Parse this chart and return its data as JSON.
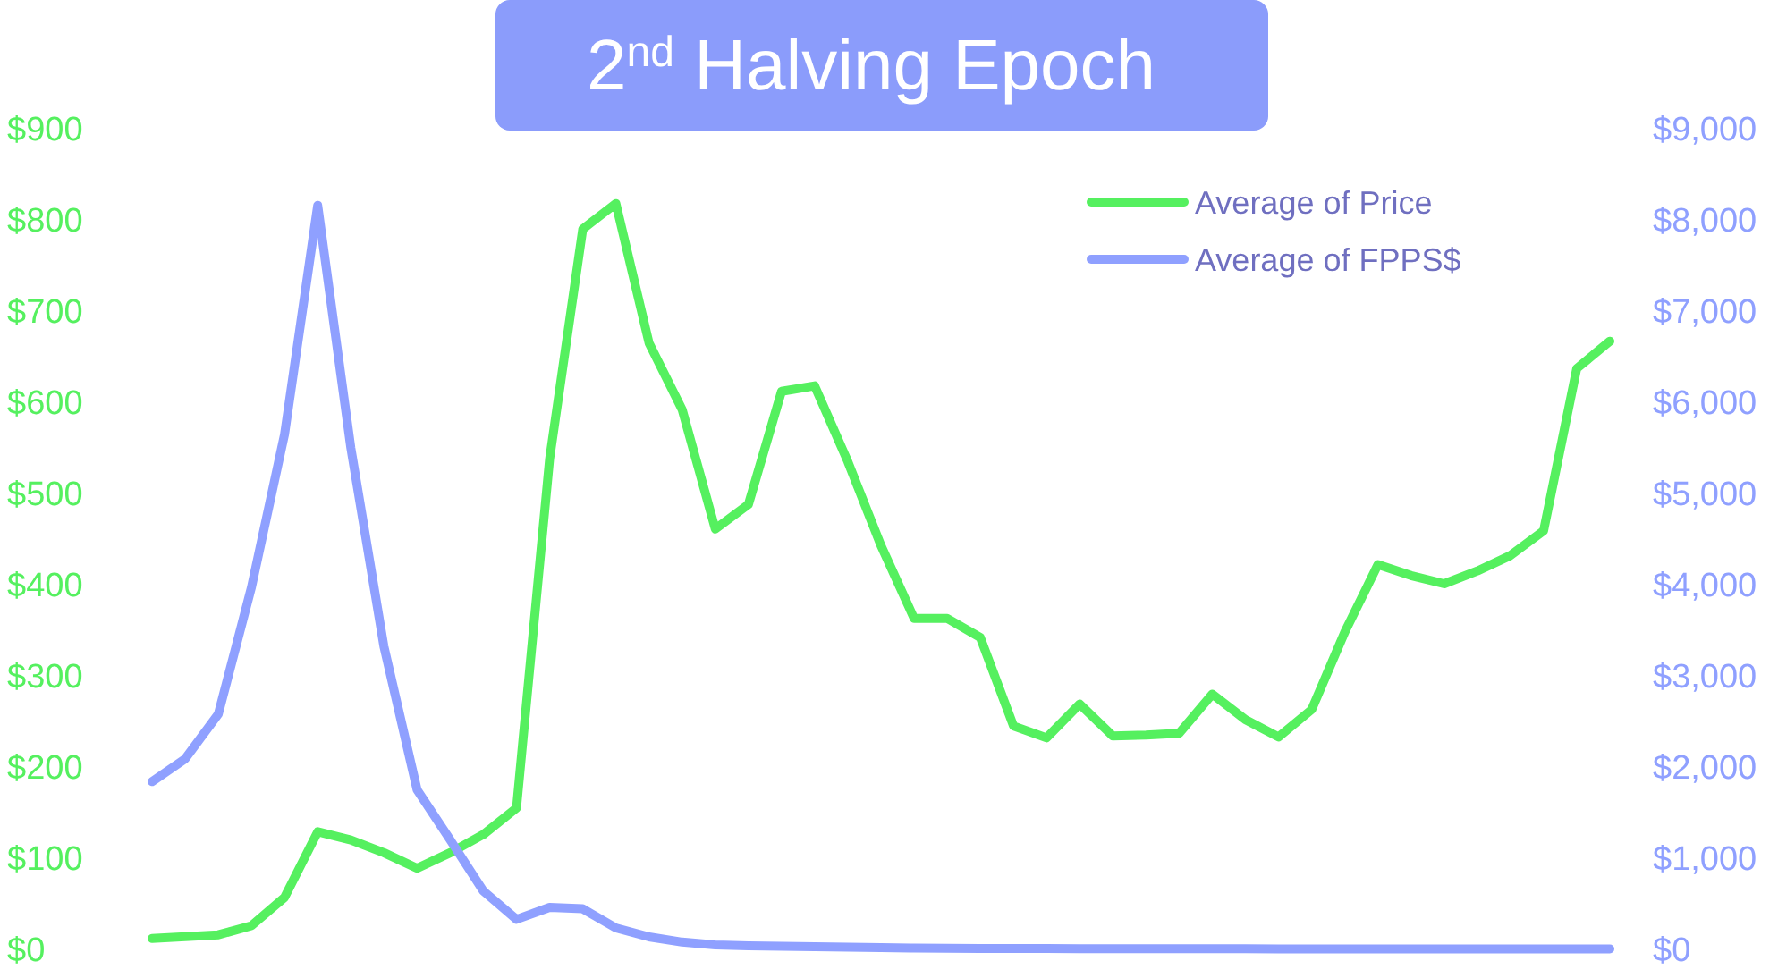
{
  "chart_data": {
    "type": "line",
    "title": "2$^{nd}$ Halving Epoch",
    "categories": [
      null,
      null,
      null,
      null,
      null,
      null,
      null,
      null,
      null,
      null,
      null,
      null,
      null,
      null,
      null,
      null,
      null,
      null,
      null,
      null,
      null,
      null,
      null,
      null,
      null,
      null,
      null,
      null,
      null,
      null,
      null,
      null,
      null,
      null,
      null,
      null,
      null,
      null,
      null,
      null,
      null,
      null,
      null,
      null,
      null
    ],
    "series": [
      {
        "name": "Average of Price",
        "color": "#55f05f",
        "values": [
          12,
          14,
          16,
          26,
          57,
          129,
          120,
          106,
          89,
          106,
          126,
          155,
          538,
          790,
          818,
          665,
          592,
          461,
          488,
          612,
          618,
          535,
          443,
          363,
          363,
          342,
          245,
          232,
          269,
          234,
          235,
          237,
          280,
          252,
          233,
          263,
          348,
          422,
          410,
          401,
          415,
          432,
          459,
          637,
          667
        ]
      },
      {
        "name": "Average of FPPS$",
        "color": "#8fa0ff",
        "axis": "y2",
        "values": [
          1840,
          2090,
          2580,
          3970,
          5650,
          8160,
          5500,
          3320,
          1750,
          1200,
          640,
          330,
          460,
          445,
          235,
          137,
          80,
          50,
          40,
          35,
          30,
          25,
          20,
          15,
          12,
          10,
          10,
          10,
          8,
          8,
          8,
          8,
          8,
          8,
          6,
          6,
          6,
          6,
          6,
          6,
          5,
          5,
          5,
          5,
          5
        ]
      }
    ],
    "ylim": [
      0,
      900
    ],
    "yticks": [
      {
        "value": 0,
        "label": "$0"
      },
      {
        "value": 100,
        "label": "$100"
      },
      {
        "value": 200,
        "label": "$200"
      },
      {
        "value": 300,
        "label": "$300"
      },
      {
        "value": 400,
        "label": "$400"
      },
      {
        "value": 500,
        "label": "$500"
      },
      {
        "value": 600,
        "label": "$600"
      },
      {
        "value": 700,
        "label": "$700"
      },
      {
        "value": 800,
        "label": "$800"
      },
      {
        "value": 900,
        "label": "$900"
      }
    ],
    "y2lim": [
      0,
      9000
    ],
    "y2ticks": [
      {
        "value": 0,
        "label": "$0"
      },
      {
        "value": 1000,
        "label": "$1,000"
      },
      {
        "value": 2000,
        "label": "$2,000"
      },
      {
        "value": 3000,
        "label": "$3,000"
      },
      {
        "value": 4000,
        "label": "$4,000"
      },
      {
        "value": 5000,
        "label": "$5,000"
      },
      {
        "value": 6000,
        "label": "$6,000"
      },
      {
        "value": 7000,
        "label": "$7,000"
      },
      {
        "value": 8000,
        "label": "$8,000"
      },
      {
        "value": 9000,
        "label": "$9,000"
      }
    ],
    "legend": "top right",
    "marker": "none",
    "line_style": "solid",
    "grid": false
  }
}
